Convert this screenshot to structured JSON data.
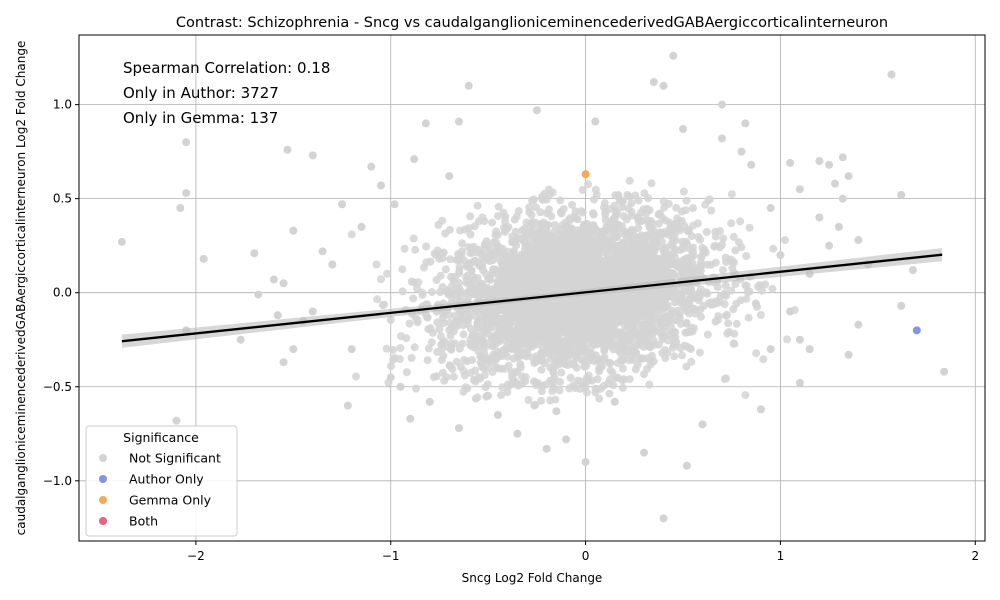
{
  "chart_data": {
    "type": "scatter",
    "title": "Contrast: Schizophrenia - Sncg vs caudalganglioniceminencederivedGABAergiccorticalinterneuron",
    "xlabel": "Sncg Log2 Fold Change",
    "ylabel": "caudalganglioniceminencederivedGABAergiccorticalinterneuron Log2 Fold Change",
    "xlim": [
      -2.6,
      2.05
    ],
    "ylim": [
      -1.32,
      1.37
    ],
    "x_ticks": [
      -2,
      -1,
      0,
      1,
      2
    ],
    "y_ticks": [
      -1.0,
      -0.5,
      0.0,
      0.5,
      1.0
    ],
    "x_tick_labels": [
      "−2",
      "−1",
      "0",
      "1",
      "2"
    ],
    "y_tick_labels": [
      "−1.0",
      "−0.5",
      "0.0",
      "0.5",
      "1.0"
    ],
    "grid": true,
    "annotations": [
      "Spearman Correlation: 0.18",
      "Only in Author: 3727",
      "Only in Gemma: 137"
    ],
    "legend": {
      "title": "Significance",
      "placement": "lower-left",
      "entries": [
        {
          "name": "Not Significant",
          "color": "#d3d3d3"
        },
        {
          "name": "Author Only",
          "color": "#8096e0"
        },
        {
          "name": "Gemma Only",
          "color": "#f5a95a"
        },
        {
          "name": "Both",
          "color": "#e8637e"
        }
      ]
    },
    "regression": {
      "x": [
        -2.38,
        1.83
      ],
      "y": [
        -0.258,
        0.202
      ],
      "band": 0.025,
      "color": "#000000"
    },
    "highlighted_points": [
      {
        "x": 1.7,
        "y": -0.2,
        "category": "Author Only"
      },
      {
        "x": 0.0,
        "y": 0.63,
        "category": "Gemma Only"
      }
    ],
    "outlier_points": [
      [
        -2.38,
        0.27
      ],
      [
        -2.05,
        0.8
      ],
      [
        -2.05,
        0.53
      ],
      [
        -2.08,
        0.45
      ],
      [
        -1.96,
        0.18
      ],
      [
        -2.05,
        -0.2
      ],
      [
        -2.1,
        -0.68
      ],
      [
        -1.77,
        -0.25
      ],
      [
        -1.7,
        0.21
      ],
      [
        -1.68,
        -0.01
      ],
      [
        -1.6,
        0.07
      ],
      [
        -1.55,
        0.05
      ],
      [
        -1.53,
        0.76
      ],
      [
        -1.55,
        -0.37
      ],
      [
        -1.58,
        -0.12
      ],
      [
        -1.5,
        0.33
      ],
      [
        -1.5,
        -0.3
      ],
      [
        -1.4,
        0.73
      ],
      [
        -1.45,
        -0.15
      ],
      [
        -1.35,
        0.22
      ],
      [
        -1.25,
        0.47
      ],
      [
        -1.22,
        -0.6
      ],
      [
        -1.1,
        0.67
      ],
      [
        -1.05,
        0.57
      ],
      [
        -0.98,
        0.47
      ],
      [
        -0.95,
        -0.5
      ],
      [
        -0.9,
        -0.67
      ],
      [
        -0.88,
        0.71
      ],
      [
        -0.82,
        0.9
      ],
      [
        -0.7,
        0.62
      ],
      [
        -0.65,
        0.91
      ],
      [
        -0.6,
        1.1
      ],
      [
        -0.65,
        -0.72
      ],
      [
        -0.8,
        -0.58
      ],
      [
        -0.45,
        -0.65
      ],
      [
        -0.35,
        -0.75
      ],
      [
        -0.25,
        0.97
      ],
      [
        -0.2,
        -0.83
      ],
      [
        -0.15,
        -0.63
      ],
      [
        -0.1,
        -0.78
      ],
      [
        0.0,
        -0.9
      ],
      [
        0.05,
        0.91
      ],
      [
        0.15,
        -0.58
      ],
      [
        0.3,
        -0.85
      ],
      [
        0.35,
        1.12
      ],
      [
        0.4,
        1.1
      ],
      [
        0.45,
        1.26
      ],
      [
        0.4,
        -1.2
      ],
      [
        0.52,
        -0.92
      ],
      [
        0.5,
        0.87
      ],
      [
        0.6,
        -0.7
      ],
      [
        0.7,
        1.0
      ],
      [
        0.7,
        0.82
      ],
      [
        0.8,
        0.75
      ],
      [
        0.82,
        0.9
      ],
      [
        0.85,
        0.68
      ],
      [
        0.9,
        -0.62
      ],
      [
        0.95,
        -0.3
      ],
      [
        1.0,
        0.2
      ],
      [
        1.05,
        0.69
      ],
      [
        1.1,
        0.55
      ],
      [
        1.1,
        -0.48
      ],
      [
        1.15,
        -0.3
      ],
      [
        1.2,
        0.7
      ],
      [
        1.25,
        0.68
      ],
      [
        1.28,
        0.58
      ],
      [
        1.32,
        0.72
      ],
      [
        1.32,
        0.5
      ],
      [
        1.35,
        0.62
      ],
      [
        1.35,
        -0.33
      ],
      [
        1.4,
        -0.17
      ],
      [
        1.4,
        0.28
      ],
      [
        1.45,
        0.15
      ],
      [
        1.57,
        1.16
      ],
      [
        1.62,
        0.52
      ],
      [
        1.62,
        -0.07
      ],
      [
        1.68,
        0.12
      ],
      [
        1.84,
        -0.42
      ],
      [
        1.2,
        0.4
      ],
      [
        1.1,
        -0.25
      ],
      [
        1.3,
        0.35
      ],
      [
        1.25,
        0.25
      ],
      [
        1.15,
        0.1
      ],
      [
        -1.2,
        -0.3
      ],
      [
        -1.3,
        0.15
      ],
      [
        -1.15,
        0.35
      ],
      [
        -1.0,
        -0.45
      ],
      [
        0.95,
        0.45
      ],
      [
        1.05,
        -0.1
      ],
      [
        -1.4,
        -0.1
      ]
    ],
    "background_cloud": {
      "count": 3800,
      "center": [
        -0.05,
        0.0
      ],
      "sd": [
        0.34,
        0.21
      ],
      "category": "Not Significant"
    }
  }
}
